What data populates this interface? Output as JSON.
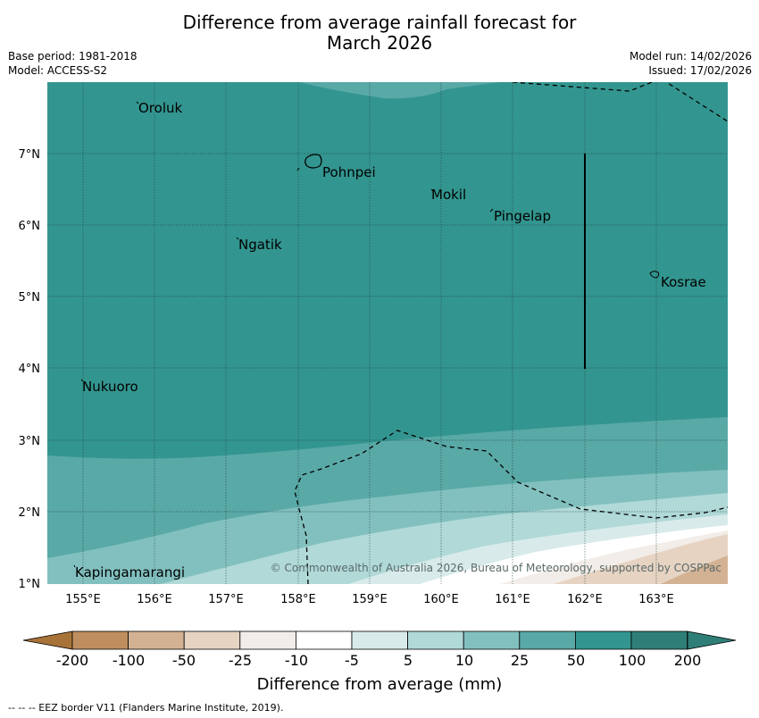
{
  "title_line1": "Difference from average rainfall forecast for",
  "title_line2": "March 2026",
  "base_period": "Base period: 1981-2018",
  "model": "Model: ACCESS-S2",
  "model_run": "Model run: 14/02/2026",
  "issued": "Issued: 17/02/2026",
  "copyright": "© Commonwealth of Australia 2026, Bureau of Meteorology, supported by COSPPac",
  "lon_ticks": [
    "155°E",
    "156°E",
    "157°E",
    "158°E",
    "159°E",
    "160°E",
    "161°E",
    "162°E",
    "163°E"
  ],
  "lat_ticks": [
    "7°N",
    "6°N",
    "5°N",
    "4°N",
    "3°N",
    "2°N",
    "1°N"
  ],
  "places": {
    "oroluk": "Oroluk",
    "pohnpei": "Pohnpei",
    "mokil": "Mokil",
    "pingelap": "Pingelap",
    "ngatik": "Ngatik",
    "kosrae": "Kosrae",
    "nukuoro": "Nukuoro",
    "kapingamarangi": "Kapingamarangi"
  },
  "colorbar": {
    "labels": [
      "-200",
      "-100",
      "-50",
      "-25",
      "-10",
      "-5",
      "5",
      "10",
      "25",
      "50",
      "100",
      "200"
    ],
    "colors": [
      "#a87338",
      "#bf8e5f",
      "#d3b294",
      "#e6d3c2",
      "#f2ede8",
      "#ffffff",
      "#d8ebea",
      "#b0d9d8",
      "#82c0bf",
      "#59a9a7",
      "#33958f",
      "#2f7f78"
    ],
    "title": "Difference from average (mm)"
  },
  "eez_note": "--  --  -- EEZ border V11 (Flanders Marine Institute, 2019)."
}
